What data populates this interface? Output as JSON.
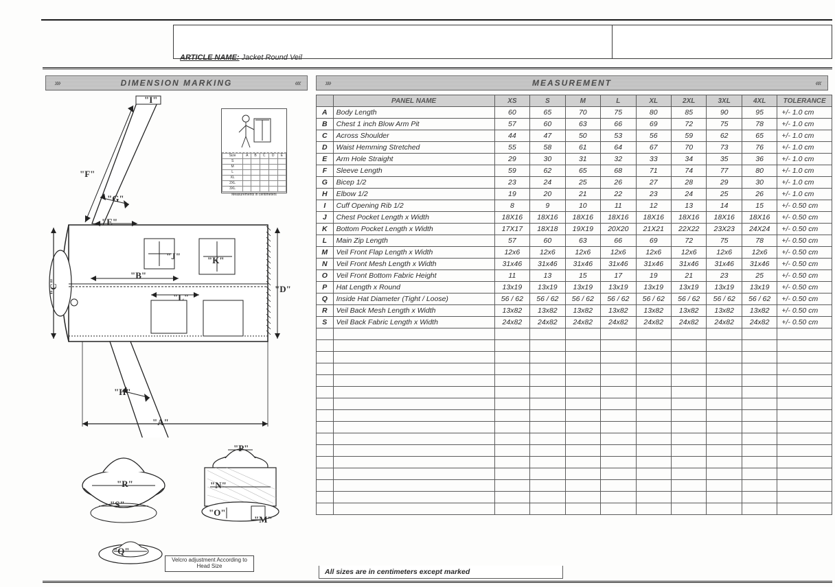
{
  "article_label": "ARTICLE NAME:",
  "article_value": "Jacket Round Veil",
  "sections": {
    "dimension": "DIMENSION MARKING",
    "measurement": "MEASUREMENT"
  },
  "diagram_labels": {
    "I": "\"I\"",
    "F": "\"F\"",
    "G": "\"G\"",
    "E": "\"E\"",
    "J": "\"J\"",
    "K": "\"K\"",
    "B": "\"B\"",
    "C": "\"C\"",
    "D": "\"D\"",
    "L": "\"L\"",
    "H": "\"H\"",
    "A": "\"A\"",
    "P": "\"P\"",
    "R": "\"R\"",
    "S": "\"S\"",
    "N": "\"N\"",
    "O": "\"O\"",
    "M": "\"M\"",
    "Q": "\"Q\""
  },
  "velcro_note": "Velcro adjustment\nAccording to Head Size",
  "mini_legend_caption": "Measurements in centimeters",
  "table": {
    "headers": [
      "",
      "PANEL NAME",
      "XS",
      "S",
      "M",
      "L",
      "XL",
      "2XL",
      "3XL",
      "4XL",
      "TOLERANCE"
    ],
    "rows": [
      {
        "c": "A",
        "n": "Body Length",
        "v": [
          "60",
          "65",
          "70",
          "75",
          "80",
          "85",
          "90",
          "95"
        ],
        "t": "+/- 1.0 cm"
      },
      {
        "c": "B",
        "n": "Chest 1 inch Blow Arm Pit",
        "v": [
          "57",
          "60",
          "63",
          "66",
          "69",
          "72",
          "75",
          "78"
        ],
        "t": "+/- 1.0 cm"
      },
      {
        "c": "C",
        "n": "Across Shoulder",
        "v": [
          "44",
          "47",
          "50",
          "53",
          "56",
          "59",
          "62",
          "65"
        ],
        "t": "+/- 1.0 cm"
      },
      {
        "c": "D",
        "n": "Waist Hemming Stretched",
        "v": [
          "55",
          "58",
          "61",
          "64",
          "67",
          "70",
          "73",
          "76"
        ],
        "t": "+/- 1.0 cm"
      },
      {
        "c": "E",
        "n": "Arm Hole Straight",
        "v": [
          "29",
          "30",
          "31",
          "32",
          "33",
          "34",
          "35",
          "36"
        ],
        "t": "+/- 1.0 cm"
      },
      {
        "c": "F",
        "n": "Sleeve Length",
        "v": [
          "59",
          "62",
          "65",
          "68",
          "71",
          "74",
          "77",
          "80"
        ],
        "t": "+/- 1.0 cm"
      },
      {
        "c": "G",
        "n": "Bicep 1/2",
        "v": [
          "23",
          "24",
          "25",
          "26",
          "27",
          "28",
          "29",
          "30"
        ],
        "t": "+/- 1.0 cm"
      },
      {
        "c": "H",
        "n": "Elbow 1/2",
        "v": [
          "19",
          "20",
          "21",
          "22",
          "23",
          "24",
          "25",
          "26"
        ],
        "t": "+/- 1.0 cm"
      },
      {
        "c": "I",
        "n": "Cuff Opening Rib 1/2",
        "v": [
          "8",
          "9",
          "10",
          "11",
          "12",
          "13",
          "14",
          "15"
        ],
        "t": "+/- 0.50 cm"
      },
      {
        "c": "J",
        "n": "Chest Pocket Length x Width",
        "v": [
          "18X16",
          "18X16",
          "18X16",
          "18X16",
          "18X16",
          "18X16",
          "18X16",
          "18X16"
        ],
        "t": "+/- 0.50 cm"
      },
      {
        "c": "K",
        "n": "Bottom Pocket Length x Width",
        "v": [
          "17X17",
          "18X18",
          "19X19",
          "20X20",
          "21X21",
          "22X22",
          "23X23",
          "24X24"
        ],
        "t": "+/- 0.50 cm"
      },
      {
        "c": "L",
        "n": "Main Zip Length",
        "v": [
          "57",
          "60",
          "63",
          "66",
          "69",
          "72",
          "75",
          "78"
        ],
        "t": "+/- 0.50 cm"
      },
      {
        "c": "M",
        "n": "Veil Front Flap Length x Width",
        "v": [
          "12x6",
          "12x6",
          "12x6",
          "12x6",
          "12x6",
          "12x6",
          "12x6",
          "12x6"
        ],
        "t": "+/- 0.50 cm"
      },
      {
        "c": "N",
        "n": "Veil Front Mesh Length x Width",
        "v": [
          "31x46",
          "31x46",
          "31x46",
          "31x46",
          "31x46",
          "31x46",
          "31x46",
          "31x46"
        ],
        "t": "+/- 0.50 cm"
      },
      {
        "c": "O",
        "n": "Veil Front Bottom Fabric Height",
        "v": [
          "11",
          "13",
          "15",
          "17",
          "19",
          "21",
          "23",
          "25"
        ],
        "t": "+/- 0.50 cm"
      },
      {
        "c": "P",
        "n": "Hat Length x Round",
        "v": [
          "13x19",
          "13x19",
          "13x19",
          "13x19",
          "13x19",
          "13x19",
          "13x19",
          "13x19"
        ],
        "t": "+/- 0.50 cm"
      },
      {
        "c": "Q",
        "n": "Inside Hat Diameter (Tight / Loose)",
        "v": [
          "56 / 62",
          "56 / 62",
          "56 / 62",
          "56 / 62",
          "56 / 62",
          "56 / 62",
          "56 / 62",
          "56 / 62"
        ],
        "t": "+/- 0.50 cm"
      },
      {
        "c": "R",
        "n": "Veil Back Mesh Length x Width",
        "v": [
          "13x82",
          "13x82",
          "13x82",
          "13x82",
          "13x82",
          "13x82",
          "13x82",
          "13x82"
        ],
        "t": "+/- 0.50 cm"
      },
      {
        "c": "S",
        "n": "Veil Back Fabric Length x Width",
        "v": [
          "24x82",
          "24x82",
          "24x82",
          "24x82",
          "24x82",
          "24x82",
          "24x82",
          "24x82"
        ],
        "t": "+/- 0.50 cm"
      }
    ],
    "empty_rows": 16,
    "footer": "All sizes are in centimeters except marked"
  },
  "colors": {
    "rule": "#1a1a1a",
    "header_bg": "#cfcfcf",
    "text": "#2a2a2a"
  }
}
